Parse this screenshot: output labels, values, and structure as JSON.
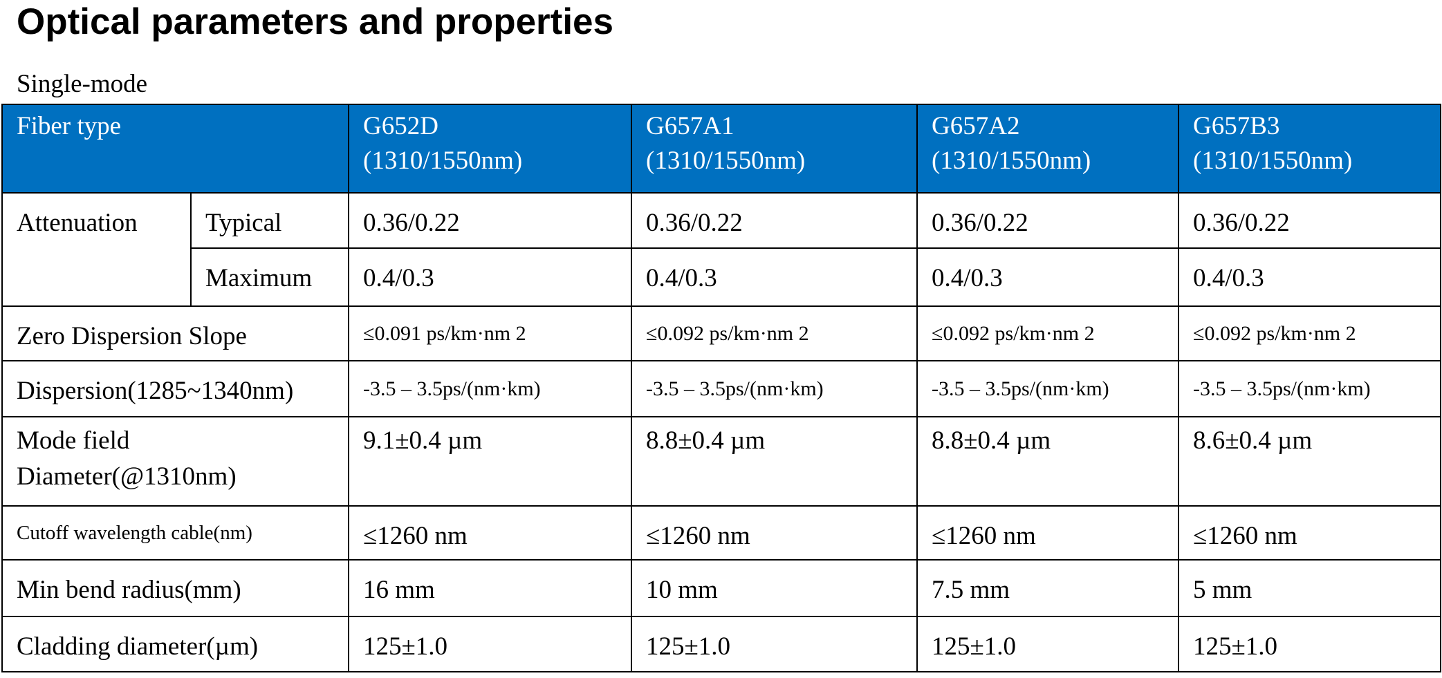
{
  "title": "Optical parameters and properties",
  "subtitle": "Single-mode",
  "table": {
    "header": {
      "label": "Fiber type",
      "columns": [
        {
          "name": "G652D",
          "range": "(1310/1550nm)"
        },
        {
          "name": "G657A1",
          "range": "(1310/1550nm)"
        },
        {
          "name": "G657A2",
          "range": "(1310/1550nm)"
        },
        {
          "name": "G657B3",
          "range": "(1310/1550nm)"
        }
      ]
    },
    "attenuation": {
      "label": "Attenuation",
      "typical": {
        "label": "Typical",
        "values": [
          "0.36/0.22",
          "0.36/0.22",
          "0.36/0.22",
          "0.36/0.22"
        ]
      },
      "maximum": {
        "label": "Maximum",
        "values": [
          "0.4/0.3",
          "0.4/0.3",
          "0.4/0.3",
          "0.4/0.3"
        ]
      }
    },
    "zero_dispersion_slope": {
      "label": "Zero Dispersion Slope",
      "values": [
        "≤0.091 ps/km·nm 2",
        "≤0.092 ps/km·nm 2",
        "≤0.092 ps/km·nm 2",
        "≤0.092 ps/km·nm 2"
      ]
    },
    "dispersion": {
      "label": "Dispersion(1285~1340nm)",
      "values": [
        "-3.5 – 3.5ps/(nm·km)",
        "-3.5 – 3.5ps/(nm·km)",
        "-3.5 – 3.5ps/(nm·km)",
        "-3.5 – 3.5ps/(nm·km)"
      ]
    },
    "mode_field_diameter": {
      "label_line1": "Mode field",
      "label_line2": "Diameter(@1310nm)",
      "values": [
        "9.1±0.4 µm",
        "8.8±0.4 µm",
        "8.8±0.4 µm",
        "8.6±0.4 µm"
      ]
    },
    "cutoff_wavelength": {
      "label": "Cutoff wavelength cable(nm)",
      "values": [
        "≤1260 nm",
        "≤1260 nm",
        "≤1260 nm",
        "≤1260 nm"
      ]
    },
    "min_bend_radius": {
      "label": "Min bend radius(mm)",
      "values": [
        "16 mm",
        "10 mm",
        "7.5 mm",
        "5 mm"
      ]
    },
    "cladding_diameter": {
      "label": "Cladding diameter(µm)",
      "values": [
        "125±1.0",
        "125±1.0",
        "125±1.0",
        "125±1.0"
      ]
    }
  },
  "colors": {
    "header_background": "#0070c0",
    "header_text": "#ffffff",
    "border": "#000000"
  }
}
